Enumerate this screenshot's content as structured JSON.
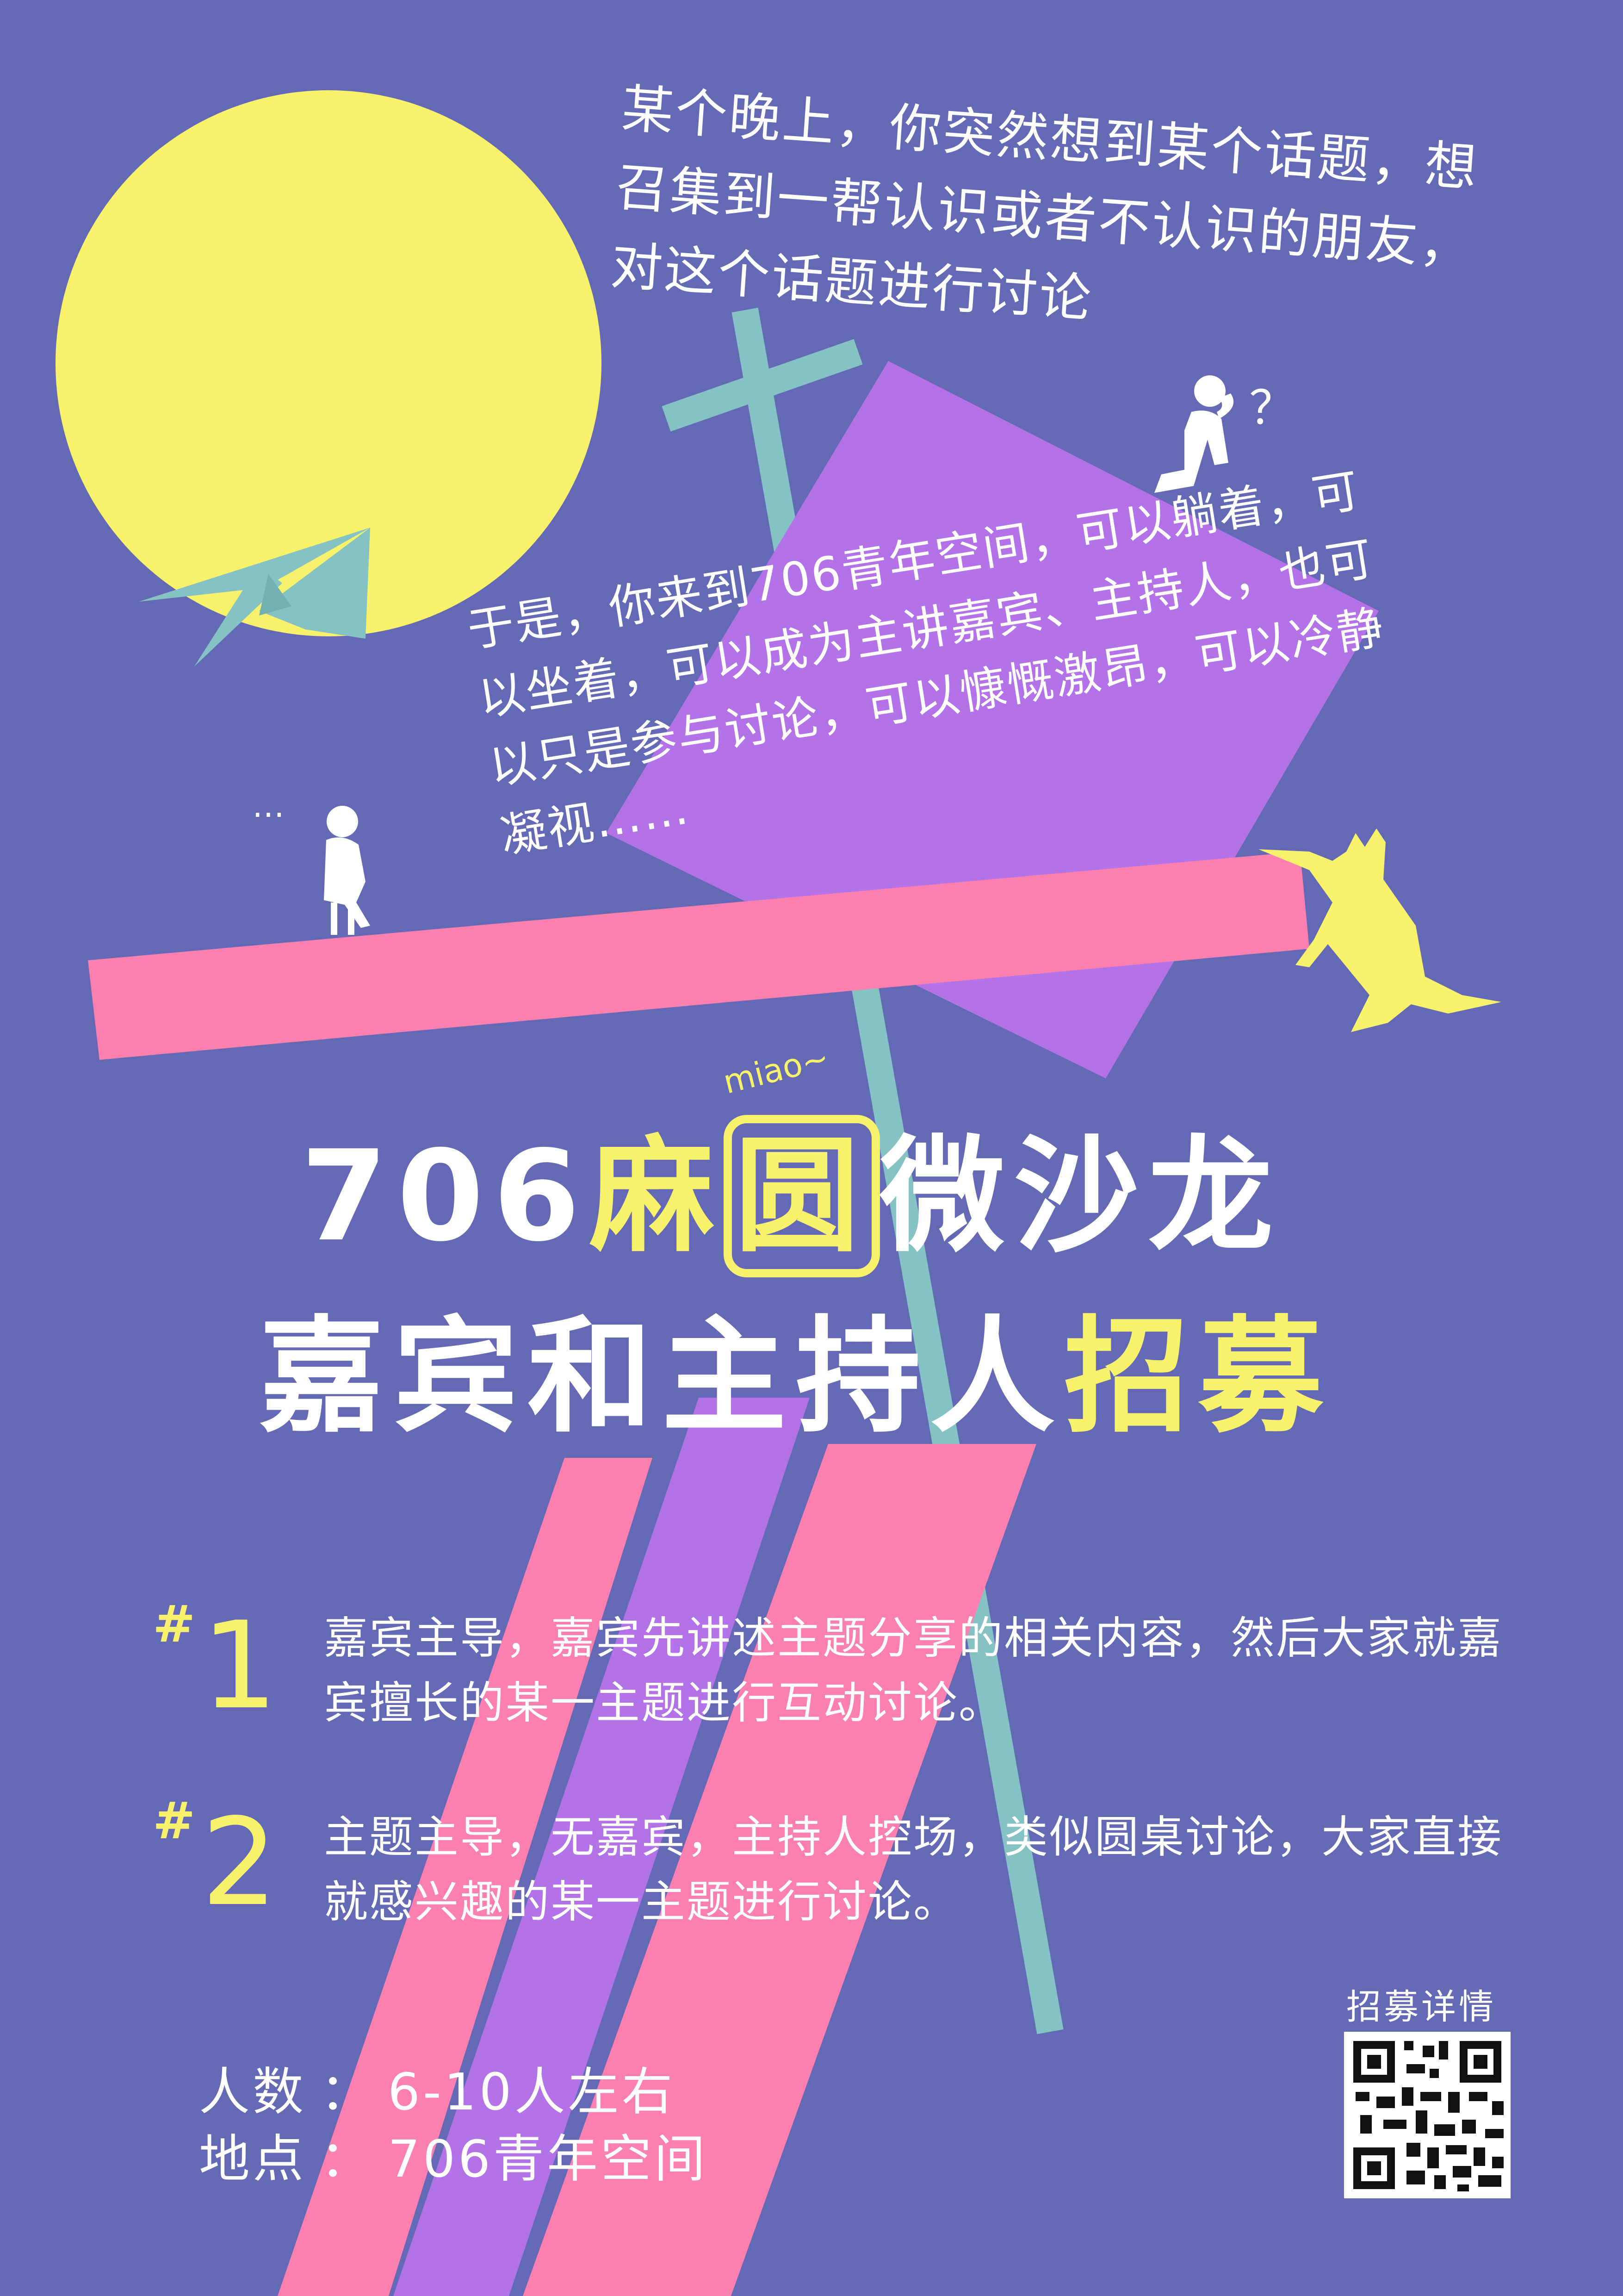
{
  "intro_text": "某个晚上，你突然想到某个话题，想召集到一帮认识或者不认识的朋友，对这个话题进行讨论",
  "middle_text": "于是，你来到706青年空间，可以躺着，可以坐着，可以成为主讲嘉宾、主持人，也可以只是参与讨论，可以慷慨激昂，可以冷静凝视……",
  "thought_mark": "？",
  "ellipsis_mark": "…",
  "miao_label": "miao~",
  "title": {
    "line1_a": "706",
    "line1_b": "麻",
    "line1_c": "圆",
    "line1_d": "微沙龙",
    "line2_a": "嘉宾和主持人",
    "line2_b": "招募"
  },
  "items": [
    {
      "hash": "#",
      "number": "1",
      "text": "嘉宾主导，嘉宾先讲述主题分享的相关内容，然后大家就嘉宾擅长的某一主题进行互动讨论。"
    },
    {
      "hash": "#",
      "number": "2",
      "text": "主题主导，无嘉宾，主持人控场，类似圆桌讨论，大家直接就感兴趣的某一主题进行讨论。"
    }
  ],
  "info": {
    "people_label": "人数",
    "people_value": "6-10人左右",
    "place_label": "地点",
    "place_value": "706青年空间",
    "separator": "："
  },
  "qr_label": "招募详情",
  "colors": {
    "background": "#6469b6",
    "yellow": "#f8f16c",
    "pink": "#fb7faf",
    "purple": "#b472e8",
    "teal": "#84c2c4",
    "white": "#ffffff"
  },
  "icons": [
    "moon-icon",
    "paper-plane-icon",
    "cross-pole-icon",
    "thinking-person-icon",
    "sitting-person-icon",
    "cat-icon",
    "qr-code-icon"
  ]
}
